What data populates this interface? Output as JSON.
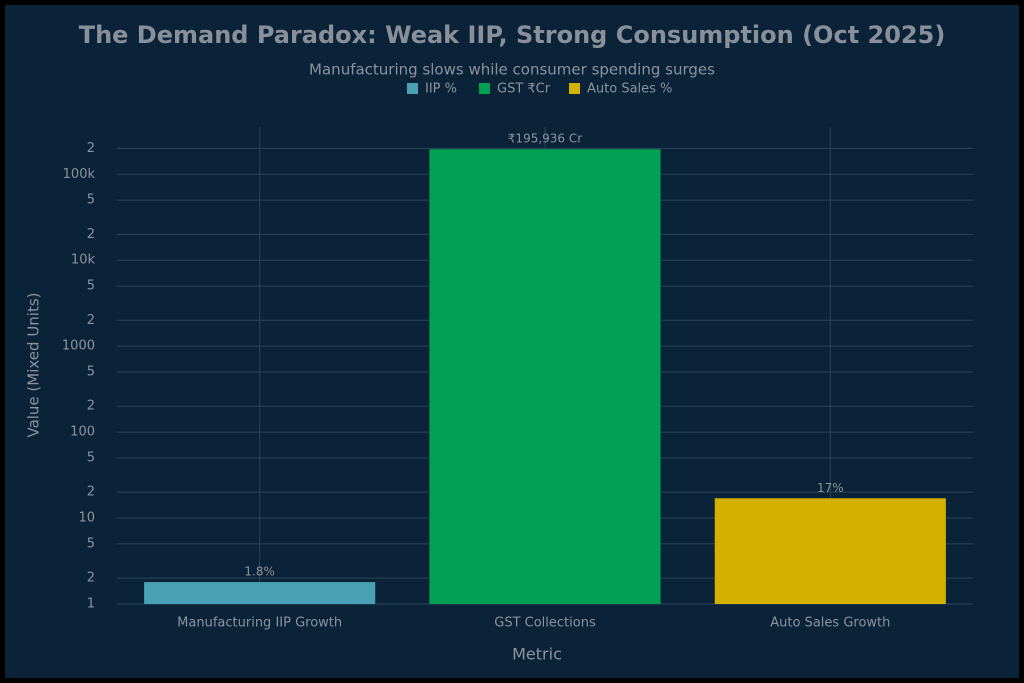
{
  "chart_data": {
    "type": "bar",
    "title": "The Demand Paradox: Weak IIP, Strong Consumption (Oct 2025)",
    "subtitle": "Manufacturing slows while consumer spending surges",
    "x_label": "Metric",
    "y_label": "Value (Mixed Units)",
    "categories": [
      "Manufacturing IIP Growth",
      "GST Collections",
      "Auto Sales Growth"
    ],
    "values": [
      1.8,
      195936,
      17
    ],
    "value_labels": [
      "1.8%",
      "₹195,936 Cr",
      "17%"
    ],
    "colors": [
      "#4aa0b5",
      "#00a152",
      "#d4b000"
    ],
    "legend": [
      "IIP %",
      "GST ₹Cr",
      "Auto Sales %"
    ],
    "y_scale": "log",
    "ylim": [
      1,
      355000
    ],
    "yticks": [
      1,
      2,
      5,
      10,
      {
        "value": 20,
        "label": "2"
      },
      {
        "value": 50,
        "label": "5"
      },
      100,
      {
        "value": 200,
        "label": "2"
      },
      {
        "value": 500,
        "label": "5"
      },
      1000,
      {
        "value": 2000,
        "label": "2"
      },
      {
        "value": 5000,
        "label": "5"
      },
      {
        "value": 10000,
        "label": "10k"
      },
      {
        "value": 20000,
        "label": "2"
      },
      {
        "value": 50000,
        "label": "5"
      },
      {
        "value": 100000,
        "label": "100k"
      },
      {
        "value": 200000,
        "label": "2"
      }
    ],
    "grid": true
  }
}
